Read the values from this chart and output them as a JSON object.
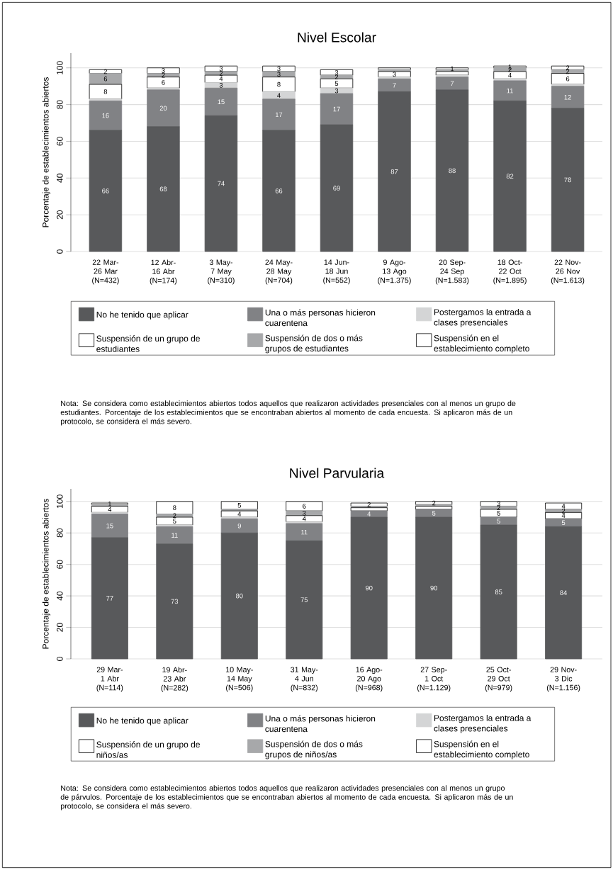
{
  "chart_data": [
    {
      "type": "bar",
      "stacked": true,
      "title": "Nivel Escolar",
      "ylabel": "Porcentaje de establecimientos abiertos",
      "categories": [
        "22 Mar- 26 Mar (N=432)",
        "12 Abr- 16 Abr (N=174)",
        "3 May- 7 May (N=310)",
        "24 May- 28 May (N=704)",
        "14 Jun- 18 Jun (N=552)",
        "9 Ago- 13 Ago (N=1.375)",
        "20 Sep- 24 Sep (N=1.583)",
        "18 Oct- 22 Oct (N=1.895)",
        "22 Nov- 26 Nov (N=1.613)"
      ],
      "series": [
        {
          "name": "No he tenido que aplicar",
          "color": "#58595b",
          "values": [
            66,
            68,
            74,
            66,
            69,
            87,
            88,
            82,
            78
          ],
          "value_labels": [
            "66",
            "68",
            "74",
            "66",
            "69",
            "87",
            "88",
            "82",
            "78"
          ]
        },
        {
          "name": "Una o más personas hicieron cuarentena",
          "color": "#818285",
          "values": [
            16,
            20,
            15,
            17,
            17,
            7,
            7,
            11,
            12
          ],
          "value_labels": [
            "16",
            "20",
            "15",
            "17",
            "17",
            "7",
            "7",
            "11",
            "12"
          ]
        },
        {
          "name": "Postergamos la entrada a clases presenciales",
          "color": "#d4d5d6",
          "values": [
            1,
            1,
            3,
            4,
            3,
            1,
            1,
            1,
            1
          ],
          "value_labels": [
            null,
            null,
            "3",
            "4",
            "3",
            null,
            null,
            null,
            null
          ]
        },
        {
          "name": "Suspensión de un grupo de estudiantes",
          "color": "#ffffff",
          "values": [
            8,
            6,
            4,
            8,
            5,
            3,
            2,
            4,
            6
          ],
          "value_labels": [
            "8",
            "6",
            "4",
            "8",
            "5",
            "3",
            null,
            "4",
            "6"
          ]
        },
        {
          "name": "Suspensión de dos o más grupos de estudiantes",
          "color": "#a7a8aa",
          "values": [
            6,
            2,
            2,
            3,
            2,
            1,
            1,
            2,
            2
          ],
          "value_labels": [
            "6",
            "2",
            "2",
            "3",
            "2",
            null,
            null,
            "2",
            "2"
          ]
        },
        {
          "name": "Suspensión en el establecimiento completo",
          "color": "#ffffff",
          "values": [
            2,
            3,
            3,
            3,
            3,
            1,
            1,
            1,
            2
          ],
          "value_labels": [
            "2",
            "3",
            "3",
            "3",
            "3",
            null,
            "1",
            "1",
            "2"
          ]
        }
      ],
      "ylim": [
        0,
        108
      ],
      "yticks": [
        0,
        20,
        40,
        60,
        80,
        100
      ],
      "grid": "y",
      "legend": "bottom",
      "annotations": [
        "Nota: Se considera como establecimientos abiertos todos aquellos que realizaron actividades presenciales con al menos un grupo de estudiantes. Porcentaje de los establecimientos que se encontraban abiertos al momento de cada encuesta. Si aplicaron más de un protocolo, se considera el más severo."
      ]
    },
    {
      "type": "bar",
      "stacked": true,
      "title": "Nivel Parvularia",
      "ylabel": "Porcentaje de establecimientos abiertos",
      "categories": [
        "29 Mar- 1 Abr (N=114)",
        "19 Abr- 23 Abr (N=282)",
        "10 May- 14 May (N=506)",
        "31 May- 4 Jun (N=832)",
        "16 Ago- 20 Ago (N=968)",
        "27 Sep- 1 Oct (N=1.129)",
        "25 Oct- 29 Oct (N=979)",
        "29 Nov- 3 Dic (N=1.156)"
      ],
      "series": [
        {
          "name": "No he tenido que aplicar",
          "color": "#58595b",
          "values": [
            77,
            73,
            80,
            75,
            90,
            90,
            85,
            84
          ],
          "value_labels": [
            "77",
            "73",
            "80",
            "75",
            "90",
            "90",
            "85",
            "84"
          ]
        },
        {
          "name": "Una o más personas hicieron cuarentena",
          "color": "#818285",
          "values": [
            15,
            11,
            9,
            11,
            4,
            5,
            5,
            5
          ],
          "value_labels": [
            "15",
            "11",
            "9",
            "11",
            "4",
            "5",
            "5",
            "5"
          ]
        },
        {
          "name": "Postergamos la entrada a clases presenciales",
          "color": "#d4d5d6",
          "values": [
            1,
            1,
            1,
            1,
            0,
            0,
            0,
            0
          ],
          "value_labels": [
            null,
            null,
            null,
            null,
            null,
            null,
            null,
            null
          ]
        },
        {
          "name": "Suspensión de un grupo de niños/as",
          "color": "#ffffff",
          "values": [
            4,
            5,
            4,
            4,
            2,
            2,
            5,
            4
          ],
          "value_labels": [
            "4",
            "5",
            "4",
            "4",
            null,
            null,
            "5",
            "4"
          ]
        },
        {
          "name": "Suspensión de dos o más grupos de niños/as",
          "color": "#a7a8aa",
          "values": [
            1,
            2,
            1,
            3,
            1,
            1,
            2,
            2
          ],
          "value_labels": [
            null,
            "2",
            null,
            "3",
            null,
            null,
            "2",
            "2"
          ]
        },
        {
          "name": "Suspensión en el establecimiento completo",
          "color": "#ffffff",
          "values": [
            1,
            8,
            5,
            6,
            2,
            2,
            3,
            4
          ],
          "value_labels": [
            "1",
            "8",
            "5",
            "6",
            "2",
            "2",
            "3",
            "4"
          ]
        }
      ],
      "ylim": [
        0,
        108
      ],
      "yticks": [
        0,
        20,
        40,
        60,
        80,
        100
      ],
      "grid": "y",
      "legend": "bottom",
      "annotations": [
        "Nota: Se considera como establecimientos abiertos todos aquellos que realizaron actividades presenciales con al menos un grupo de párvulos. Porcentaje de los establecimientos que se encontraban abiertos al momento de cada encuesta. Si aplicaron más de un protocolo, se considera el más severo."
      ]
    }
  ]
}
